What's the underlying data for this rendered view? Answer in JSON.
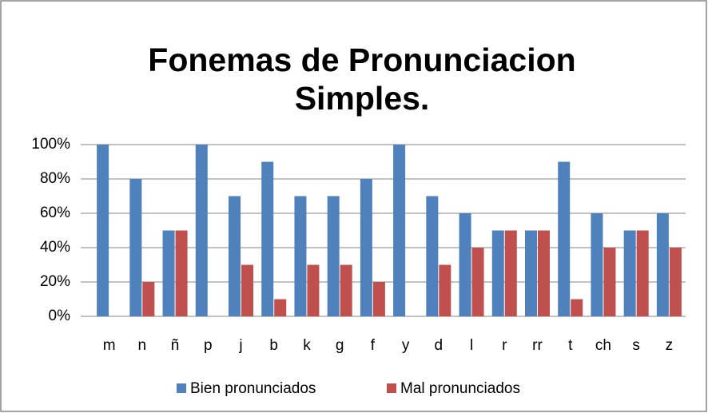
{
  "chart_data": {
    "type": "bar",
    "title": [
      "Fonemas de Pronunciacion",
      "Simples."
    ],
    "categories": [
      "m",
      "n",
      "ñ",
      "p",
      "j",
      "b",
      "k",
      "g",
      "f",
      "y",
      "d",
      "l",
      "r",
      "rr",
      "t",
      "ch",
      "s",
      "z"
    ],
    "series": [
      {
        "name": "Bien pronunciados",
        "color": "#4f81bd",
        "values": [
          100,
          80,
          50,
          100,
          70,
          90,
          70,
          70,
          80,
          100,
          70,
          60,
          50,
          50,
          90,
          60,
          50,
          60
        ]
      },
      {
        "name": "Mal pronunciados",
        "color": "#c0504d",
        "values": [
          0,
          20,
          50,
          0,
          30,
          10,
          30,
          30,
          20,
          0,
          30,
          40,
          50,
          50,
          10,
          40,
          50,
          40
        ]
      }
    ],
    "ylim": [
      0,
      100
    ],
    "yticks": [
      {
        "value": 0,
        "label": "0%"
      },
      {
        "value": 20,
        "label": "20%"
      },
      {
        "value": 40,
        "label": "40%"
      },
      {
        "value": 60,
        "label": "60%"
      },
      {
        "value": 80,
        "label": "80%"
      },
      {
        "value": 100,
        "label": "100%"
      }
    ],
    "grid": true,
    "legend": "bottom"
  }
}
